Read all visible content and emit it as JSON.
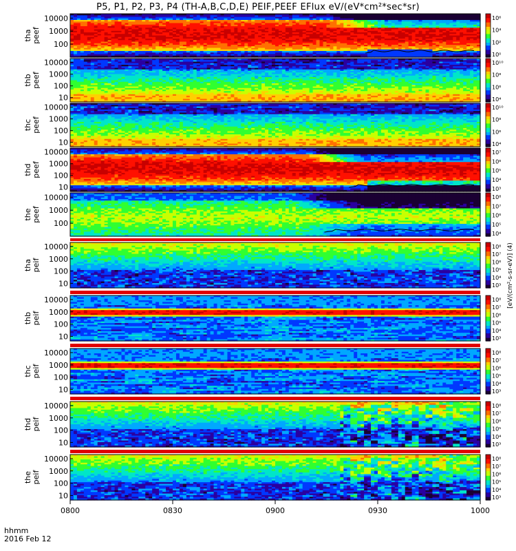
{
  "title": "P5, P1, P2, P3, P4 (TH-A,B,C,D,E) PEIF,PEEF EFlux eV/(eV*cm²*sec*sr)",
  "x_axis": {
    "label_line1": "hhmm",
    "label_line2": "2016 Feb 12",
    "tick_labels": [
      "0800",
      "0830",
      "0900",
      "0930",
      "1000"
    ]
  },
  "colorbar_unit_label": "[eV/(cm²-s-sr-eV)] (4)",
  "colormap": [
    "#1a0033",
    "#2a00a0",
    "#0038ff",
    "#00a8ff",
    "#00e6c8",
    "#30ff30",
    "#c8ff00",
    "#ffd000",
    "#ff7000",
    "#ff1000",
    "#c80000"
  ],
  "chart_data": {
    "type": "heatmap",
    "x_range": [
      "0800",
      "1000"
    ],
    "x_ticks": [
      "0800",
      "0830",
      "0900",
      "0930",
      "1000"
    ],
    "panels": [
      {
        "id": "tha_peef",
        "ylabel": [
          "tha",
          "peef"
        ],
        "y_ticks": [
          "10000",
          "1000",
          "100"
        ],
        "cb_ticks": [
          "10⁶",
          "10⁴",
          "10²",
          "10⁰"
        ],
        "scale": "log",
        "profile": "red_high",
        "trend": "thinning_after_0915",
        "low_trace": "from_0940"
      },
      {
        "id": "thb_peef",
        "ylabel": [
          "thb",
          "peef"
        ],
        "y_ticks": [
          "10000",
          "1000",
          "100",
          "10"
        ],
        "cb_ticks": [
          "10¹⁰",
          "10⁸",
          "10⁶",
          "10⁴"
        ],
        "scale": "log",
        "profile": "blue_banded",
        "trend": "flat"
      },
      {
        "id": "thc_peef",
        "ylabel": [
          "thc",
          "peef"
        ],
        "y_ticks": [
          "10000",
          "1000",
          "100",
          "10"
        ],
        "cb_ticks": [
          "10¹⁰",
          "10⁸",
          "10⁶",
          "10⁴"
        ],
        "scale": "log",
        "profile": "blue_banded",
        "trend": "flat"
      },
      {
        "id": "thd_peef",
        "ylabel": [
          "thd",
          "peef"
        ],
        "y_ticks": [
          "10000",
          "1000",
          "100",
          "10"
        ],
        "cb_ticks": [
          "10⁷",
          "10⁶",
          "10⁵",
          "10⁴",
          "10³"
        ],
        "scale": "log",
        "profile": "red_high",
        "trend": "thinning_after_0910",
        "low_trace": "from_0935"
      },
      {
        "id": "the_peef",
        "ylabel": [
          "the",
          "peef"
        ],
        "y_ticks": [
          "10000",
          "1000",
          "100"
        ],
        "cb_ticks": [
          "10⁸",
          "10⁷",
          "10⁶",
          "10⁵",
          "10⁴"
        ],
        "scale": "log",
        "profile": "green_mid",
        "trend": "thinning_after_0905",
        "low_trace": "from_0930"
      },
      {
        "id": "tha_peif",
        "ylabel": [
          "tha",
          "peif"
        ],
        "y_ticks": [
          "10000",
          "1000",
          "100",
          "10"
        ],
        "cb_ticks": [
          "10⁸",
          "10⁷",
          "10⁶",
          "10⁵",
          "10⁴",
          "10³"
        ],
        "scale": "log",
        "profile": "ion_green",
        "trend": "flat"
      },
      {
        "id": "thb_peif",
        "ylabel": [
          "thb",
          "peif"
        ],
        "y_ticks": [
          "10000",
          "1000",
          "100",
          "10"
        ],
        "cb_ticks": [
          "10⁸",
          "10⁷",
          "10⁶",
          "10⁵",
          "10⁴",
          "10³"
        ],
        "scale": "log",
        "profile": "ion_band",
        "trend": "flat"
      },
      {
        "id": "thc_peif",
        "ylabel": [
          "thc",
          "peif"
        ],
        "y_ticks": [
          "10000",
          "1000",
          "100",
          "10"
        ],
        "cb_ticks": [
          "10⁸",
          "10⁷",
          "10⁶",
          "10⁵",
          "10⁴",
          "10³"
        ],
        "scale": "log",
        "profile": "ion_band",
        "trend": "flat"
      },
      {
        "id": "thd_peif",
        "ylabel": [
          "thd",
          "peif"
        ],
        "y_ticks": [
          "10000",
          "1000",
          "100",
          "10"
        ],
        "cb_ticks": [
          "10⁸",
          "10⁷",
          "10⁶",
          "10⁵",
          "10⁴",
          "10³"
        ],
        "scale": "log",
        "profile": "ion_green",
        "trend": "variable_after_0915"
      },
      {
        "id": "the_peif",
        "ylabel": [
          "the",
          "peif"
        ],
        "y_ticks": [
          "10000",
          "1000",
          "100",
          "10"
        ],
        "cb_ticks": [
          "10⁸",
          "10⁷",
          "10⁶",
          "10⁵",
          "10⁴",
          "10³"
        ],
        "scale": "log",
        "profile": "ion_green",
        "trend": "variable_after_0915"
      }
    ]
  }
}
